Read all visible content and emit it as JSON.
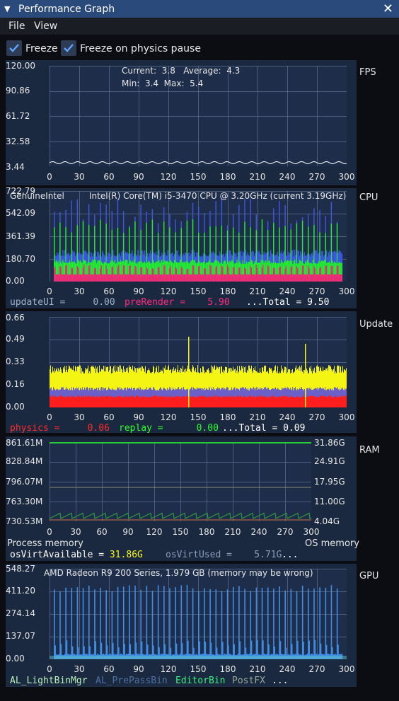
{
  "window": {
    "title": "Performance Graph",
    "close_icon": "close-icon"
  },
  "menu": {
    "file": "File",
    "view": "View"
  },
  "controls": {
    "freeze_label": "Freeze",
    "freeze_checked": true,
    "freeze_physics_label": "Freeze on physics pause",
    "freeze_physics_checked": true
  },
  "x_ticks": [
    "0",
    "30",
    "60",
    "90",
    "120",
    "150",
    "180",
    "210",
    "240",
    "270",
    "300"
  ],
  "fps": {
    "name": "FPS",
    "y_ticks": [
      "120.00",
      "90.86",
      "61.72",
      "32.58",
      "3.44"
    ],
    "stats": {
      "l1": "Current:  3.8   Average:  4.3",
      "l2": "Min:  3.4  Max:  5.4"
    }
  },
  "cpu": {
    "name": "CPU",
    "y_ticks": [
      "722.79",
      "542.09",
      "361.39",
      "180.70",
      "0.00"
    ],
    "vendor": "GenuineIntel",
    "model": "Intel(R) Core(TM) i5-3470 CPU @ 3.20GHz (current 3.19GHz)",
    "legend": [
      {
        "label": "updateUI = ",
        "value": "0.00",
        "color": "#9fb0c8"
      },
      {
        "label": "preRender = ",
        "value": "5.90",
        "color": "#ff2a80"
      }
    ],
    "total": "...Total = 9.50"
  },
  "update": {
    "name": "Update",
    "y_ticks": [
      "0.66",
      "0.49",
      "0.33",
      "0.16",
      "0.00"
    ],
    "legend": [
      {
        "label": "physics = ",
        "value": "0.06",
        "color": "#ff2a2a"
      },
      {
        "label": "replay = ",
        "value": "0.00",
        "color": "#2cff2c"
      }
    ],
    "total": "...Total = 0.09"
  },
  "ram": {
    "name": "RAM",
    "y_ticks_left": [
      "861.61M",
      "828.84M",
      "796.07M",
      "763.30M",
      "730.53M"
    ],
    "y_ticks_right": [
      "31.86G",
      "24.91G",
      "17.95G",
      "11.00G",
      "4.04G"
    ],
    "process_label": "Process memory",
    "os_label": "OS memory",
    "legend": [
      {
        "label": "osVirtAvailable = ",
        "value": "31.86G",
        "color": "#ffffff"
      },
      {
        "label": "osVirtUsed = ",
        "value": "5.71G",
        "color": "#8a9ab8"
      }
    ],
    "more": "..."
  },
  "gpu": {
    "name": "GPU",
    "y_ticks": [
      "548.27",
      "411.20",
      "274.14",
      "137.07",
      "0.00"
    ],
    "device": "AMD Radeon R9 200 Series, 1.979 GB (memory may be wrong)",
    "legend": [
      {
        "label": "AL_LightBinMgr",
        "color": "#b9f0b9"
      },
      {
        "label": "AL_PrePassBin",
        "color": "#4f6fa0"
      },
      {
        "label": "EditorBin",
        "color": "#3cf07a"
      },
      {
        "label": "PostFX",
        "color": "#9aa89a"
      }
    ],
    "more": "..."
  },
  "colors": {
    "plot_bg": "#1e2e4a",
    "grid": "#6b7d9c",
    "blue": "#3f56e6",
    "green": "#22f028",
    "pink": "#ff1e78",
    "red": "#ff1e1e",
    "yellow": "#f5f514"
  }
}
